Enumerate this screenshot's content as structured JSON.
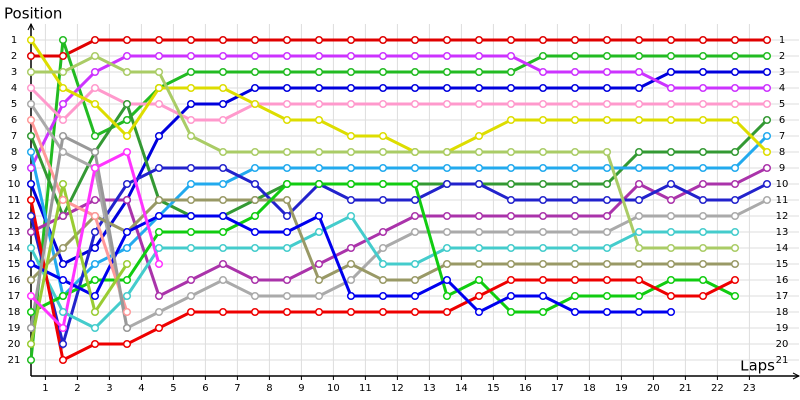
{
  "chart_data": {
    "type": "line",
    "y_label": "Position",
    "x_label": "Laps",
    "x": [
      0,
      1,
      2,
      3,
      4,
      5,
      6,
      7,
      8,
      9,
      10,
      11,
      12,
      13,
      14,
      15,
      16,
      17,
      18,
      19,
      20,
      21,
      22,
      23
    ],
    "xlim": [
      0,
      24
    ],
    "ylim": [
      22,
      0
    ],
    "xticks": [
      {
        "value": 0.45,
        "label": "1"
      },
      {
        "value": 1.45,
        "label": "2"
      },
      {
        "value": 2.45,
        "label": "3"
      },
      {
        "value": 3.45,
        "label": "4"
      },
      {
        "value": 4.45,
        "label": "5"
      },
      {
        "value": 5.45,
        "label": "6"
      },
      {
        "value": 6.45,
        "label": "7"
      },
      {
        "value": 7.45,
        "label": "8"
      },
      {
        "value": 8.45,
        "label": "9"
      },
      {
        "value": 9.45,
        "label": "10"
      },
      {
        "value": 10.45,
        "label": "11"
      },
      {
        "value": 11.45,
        "label": "12"
      },
      {
        "value": 12.45,
        "label": "13"
      },
      {
        "value": 13.45,
        "label": "14"
      },
      {
        "value": 14.45,
        "label": "15"
      },
      {
        "value": 15.45,
        "label": "16"
      },
      {
        "value": 16.45,
        "label": "17"
      },
      {
        "value": 17.45,
        "label": "18"
      },
      {
        "value": 18.45,
        "label": "19"
      },
      {
        "value": 19.45,
        "label": "20"
      },
      {
        "value": 20.45,
        "label": "21"
      },
      {
        "value": 21.45,
        "label": "22"
      },
      {
        "value": 22.45,
        "label": "23"
      }
    ],
    "yticks": [
      1,
      2,
      3,
      4,
      5,
      6,
      7,
      8,
      9,
      10,
      11,
      12,
      13,
      14,
      15,
      16,
      17,
      18,
      19,
      20,
      21
    ],
    "grid": true,
    "series": [
      {
        "color": "#e00000",
        "values": [
          2,
          2,
          1,
          1,
          1,
          1,
          1,
          1,
          1,
          1,
          1,
          1,
          1,
          1,
          1,
          1,
          1,
          1,
          1,
          1,
          1,
          1,
          1,
          1
        ]
      },
      {
        "color": "#22bb22",
        "values": [
          21,
          1,
          7,
          6,
          4,
          3,
          3,
          3,
          3,
          3,
          3,
          3,
          3,
          3,
          3,
          3,
          2,
          2,
          2,
          2,
          2,
          2,
          2,
          2
        ]
      },
      {
        "color": "#0000dd",
        "values": [
          10,
          15,
          14,
          11,
          7,
          5,
          5,
          4,
          4,
          4,
          4,
          4,
          4,
          4,
          4,
          4,
          4,
          4,
          4,
          4,
          3,
          3,
          3,
          3
        ]
      },
      {
        "color": "#cc33ff",
        "values": [
          9,
          5,
          3,
          2,
          2,
          2,
          2,
          2,
          2,
          2,
          2,
          2,
          2,
          2,
          2,
          2,
          3,
          3,
          3,
          3,
          4,
          4,
          4,
          4
        ]
      },
      {
        "color": "#ff99cc",
        "values": [
          4,
          6,
          4,
          5,
          5,
          6,
          6,
          5,
          5,
          5,
          5,
          5,
          5,
          5,
          5,
          5,
          5,
          5,
          5,
          5,
          5,
          5,
          5,
          5
        ]
      },
      {
        "color": "#339933",
        "values": [
          7,
          12,
          8,
          5,
          11,
          12,
          12,
          11,
          10,
          10,
          10,
          10,
          10,
          10,
          10,
          10,
          10,
          10,
          10,
          8,
          8,
          8,
          8,
          6
        ]
      },
      {
        "color": "#22aaee",
        "values": [
          8,
          17,
          15,
          14,
          12,
          10,
          10,
          9,
          9,
          9,
          9,
          9,
          9,
          9,
          9,
          9,
          9,
          9,
          9,
          9,
          9,
          9,
          9,
          7
        ]
      },
      {
        "color": "#dddd00",
        "values": [
          1,
          4,
          5,
          7,
          4,
          4,
          4,
          5,
          6,
          6,
          7,
          7,
          8,
          8,
          7,
          6,
          6,
          6,
          6,
          6,
          6,
          6,
          6,
          8
        ]
      },
      {
        "color": "#aa33aa",
        "values": [
          13,
          12,
          11,
          11,
          17,
          16,
          15,
          16,
          16,
          15,
          14,
          13,
          12,
          12,
          12,
          12,
          12,
          12,
          12,
          10,
          11,
          10,
          10,
          9
        ]
      },
      {
        "color": "#2222cc",
        "values": [
          12,
          20,
          13,
          10,
          9,
          9,
          9,
          10,
          12,
          10,
          11,
          11,
          11,
          10,
          10,
          11,
          11,
          11,
          11,
          11,
          10,
          11,
          11,
          10
        ]
      },
      {
        "color": "#aaaaaa",
        "values": [
          5,
          8,
          9,
          19,
          18,
          17,
          16,
          17,
          17,
          17,
          16,
          14,
          13,
          13,
          13,
          13,
          13,
          13,
          13,
          12,
          12,
          12,
          12,
          11
        ]
      },
      {
        "color": "#aacc66",
        "values": [
          3,
          3,
          2,
          3,
          3,
          7,
          8,
          8,
          8,
          8,
          8,
          8,
          8,
          8,
          8,
          8,
          8,
          8,
          8,
          14,
          14,
          14,
          14,
          null
        ]
      },
      {
        "color": "#44cccc",
        "values": [
          14,
          18,
          19,
          17,
          14,
          14,
          14,
          14,
          14,
          13,
          12,
          15,
          15,
          14,
          14,
          14,
          14,
          14,
          14,
          13,
          13,
          13,
          13,
          null
        ]
      },
      {
        "color": "#999966",
        "values": [
          16,
          14,
          12,
          13,
          11,
          11,
          11,
          11,
          11,
          16,
          15,
          16,
          16,
          15,
          15,
          15,
          15,
          15,
          15,
          15,
          15,
          15,
          15,
          null
        ]
      },
      {
        "color": "#11cc11",
        "values": [
          18,
          17,
          16,
          16,
          13,
          13,
          13,
          12,
          10,
          10,
          10,
          10,
          10,
          17,
          16,
          18,
          18,
          17,
          17,
          17,
          16,
          16,
          17,
          null
        ]
      },
      {
        "color": "#ee0000",
        "values": [
          11,
          21,
          20,
          20,
          19,
          18,
          18,
          18,
          18,
          18,
          18,
          18,
          18,
          18,
          17,
          16,
          16,
          16,
          16,
          16,
          17,
          17,
          16,
          null
        ]
      },
      {
        "color": "#0000ee",
        "values": [
          15,
          16,
          17,
          13,
          12,
          12,
          12,
          13,
          13,
          12,
          17,
          17,
          17,
          16,
          18,
          17,
          17,
          18,
          18,
          18,
          18,
          null,
          null,
          null
        ]
      },
      {
        "color": "#ff9999",
        "values": [
          6,
          11,
          12,
          18,
          null,
          null,
          null,
          null,
          null,
          null,
          null,
          null,
          null,
          null,
          null,
          null,
          null,
          null,
          null,
          null,
          null,
          null,
          null,
          null
        ]
      },
      {
        "color": "#999999",
        "values": [
          19,
          7,
          8,
          19,
          null,
          null,
          null,
          null,
          null,
          null,
          null,
          null,
          null,
          null,
          null,
          null,
          null,
          null,
          null,
          null,
          null,
          null,
          null,
          null
        ]
      },
      {
        "color": "#99cc33",
        "values": [
          20,
          10,
          18,
          15,
          null,
          null,
          null,
          null,
          null,
          null,
          null,
          null,
          null,
          null,
          null,
          null,
          null,
          null,
          null,
          null,
          null,
          null,
          null,
          null
        ]
      },
      {
        "color": "#ff33ff",
        "values": [
          17,
          19,
          9,
          8,
          15,
          null,
          null,
          null,
          null,
          null,
          null,
          null,
          null,
          null,
          null,
          null,
          null,
          null,
          null,
          null,
          null,
          null,
          null,
          null
        ]
      }
    ]
  }
}
